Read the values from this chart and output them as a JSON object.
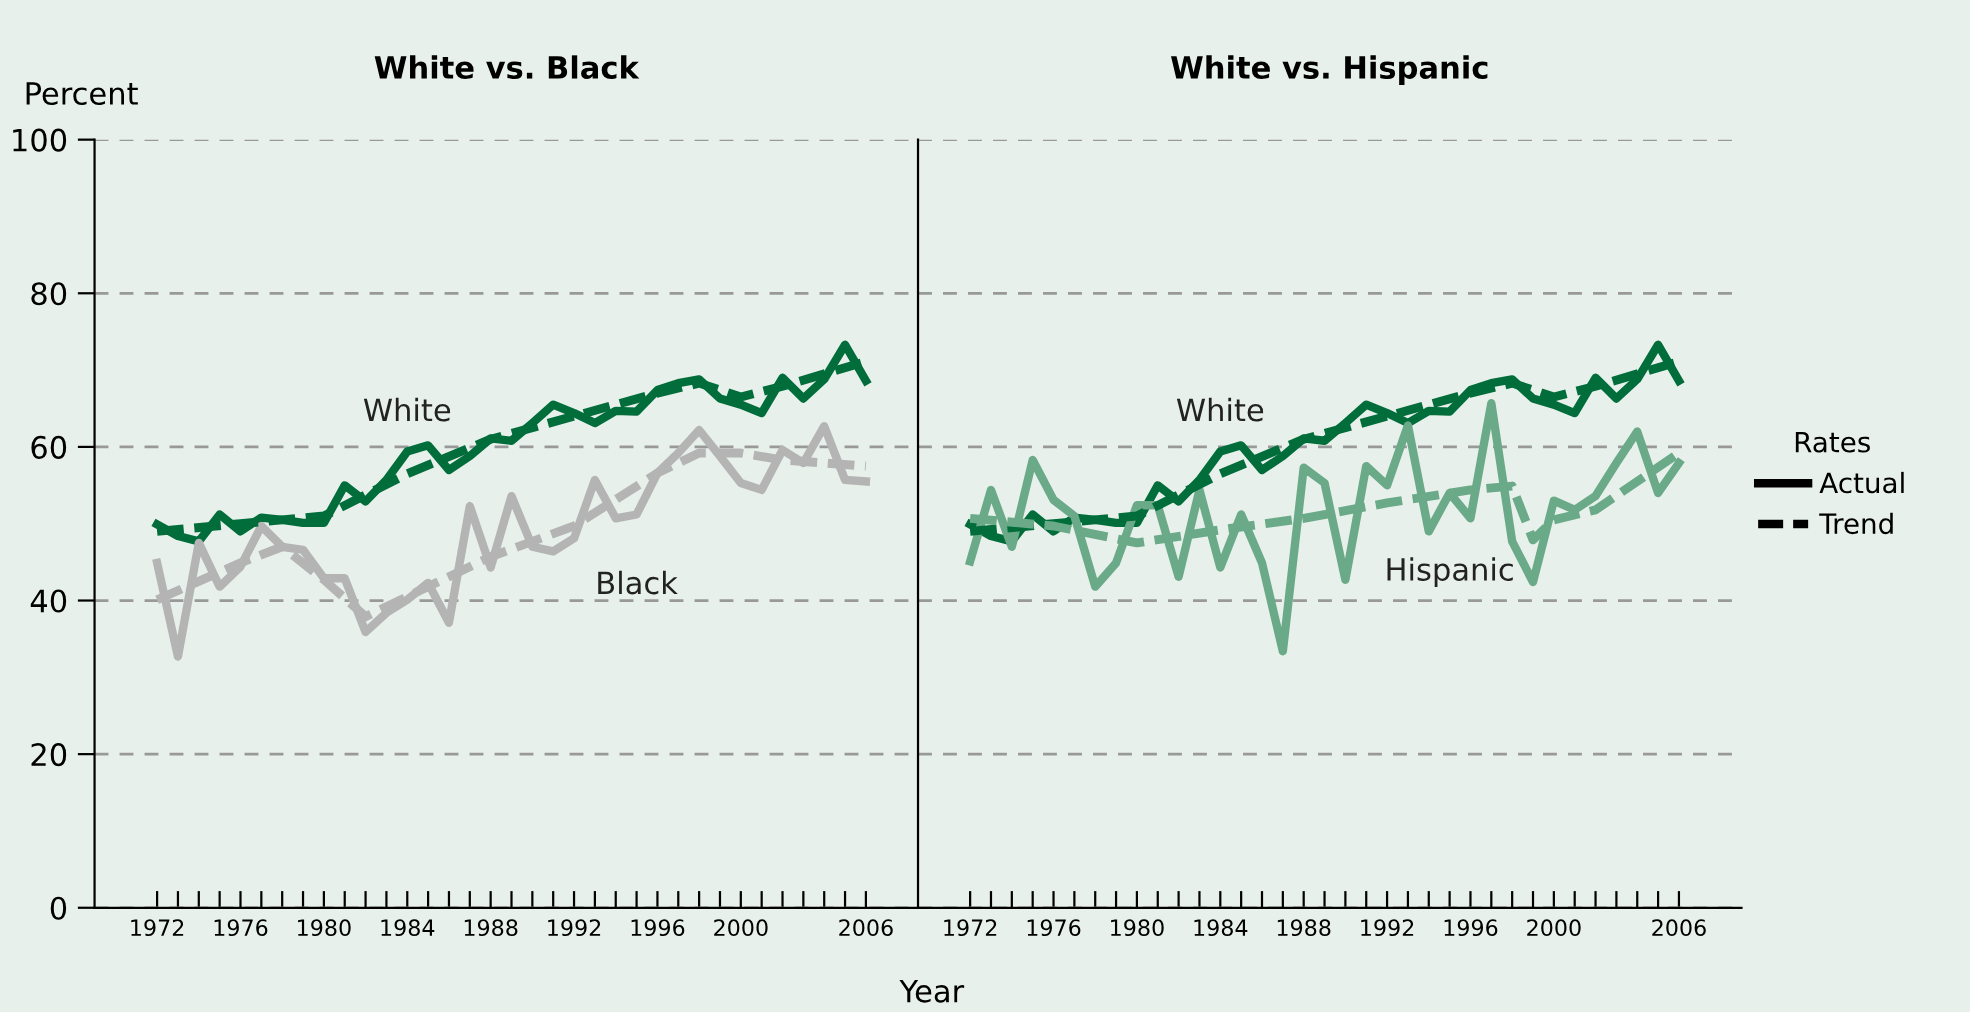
{
  "chart_data": [
    {
      "type": "line",
      "title": "White vs. Black",
      "ylabel": "Percent",
      "xlabel": "Year",
      "x": [
        1972,
        1973,
        1974,
        1975,
        1976,
        1977,
        1978,
        1979,
        1980,
        1981,
        1982,
        1983,
        1984,
        1985,
        1986,
        1987,
        1988,
        1989,
        1990,
        1991,
        1992,
        1993,
        1994,
        1995,
        1996,
        1997,
        1998,
        1999,
        2000,
        2001,
        2002,
        2003,
        2004,
        2005,
        2006
      ],
      "series": [
        {
          "name": "White",
          "color": "#006d3a",
          "line_style": "solid",
          "values": [
            49.9,
            48.4,
            47.7,
            51.2,
            49.0,
            50.8,
            50.5,
            50.1,
            50.1,
            55.0,
            52.9,
            55.7,
            59.4,
            60.2,
            57.0,
            58.8,
            61.1,
            60.8,
            63.1,
            65.5,
            64.4,
            63.1,
            64.7,
            64.6,
            67.4,
            68.3,
            68.8,
            66.3,
            65.5,
            64.4,
            69.0,
            66.3,
            68.8,
            73.3,
            68.6
          ]
        },
        {
          "name": "Black",
          "color": "#b4b4b4",
          "line_style": "solid",
          "values": [
            44.9,
            32.7,
            47.5,
            41.8,
            44.4,
            49.7,
            47.0,
            46.6,
            42.9,
            42.9,
            35.9,
            38.4,
            40.1,
            42.3,
            37.1,
            52.3,
            44.3,
            53.6,
            47.0,
            46.4,
            48.1,
            55.7,
            50.7,
            51.2,
            56.6,
            59.2,
            62.2,
            58.8,
            55.3,
            54.4,
            59.6,
            57.9,
            62.7,
            55.7,
            55.5
          ]
        },
        {
          "color": "#006d3a",
          "line_style": "dashed",
          "x": [
            1972,
            1976,
            1980,
            1984,
            1988,
            1992,
            1996,
            1998,
            2000,
            2002,
            2006
          ],
          "values": [
            49.0,
            50.0,
            51.0,
            56.5,
            61.0,
            64.0,
            67.0,
            68.3,
            66.5,
            67.9,
            71.1
          ]
        },
        {
          "color": "#b4b4b4",
          "line_style": "dashed",
          "x": [
            1972,
            1976,
            1978,
            1980,
            1982,
            1988,
            1992,
            1996,
            1998,
            2000,
            2002,
            2006
          ],
          "values": [
            40.1,
            44.9,
            47.0,
            42.7,
            37.9,
            45.7,
            49.7,
            56.6,
            59.2,
            59.2,
            58.3,
            57.5
          ]
        }
      ],
      "xlim": [
        1969,
        2008.5
      ],
      "ylim": [
        0,
        100
      ],
      "yticks": [
        0,
        20,
        40,
        60,
        80,
        100
      ],
      "xticks": [
        1972,
        {
          "value": 1973,
          "label": null
        },
        {
          "value": 1974,
          "label": null
        },
        {
          "value": 1975,
          "label": null
        },
        1976,
        {
          "value": 1977,
          "label": null
        },
        {
          "value": 1978,
          "label": null
        },
        {
          "value": 1979,
          "label": null
        },
        1980,
        {
          "value": 1981,
          "label": null
        },
        {
          "value": 1982,
          "label": null
        },
        {
          "value": 1983,
          "label": null
        },
        1984,
        {
          "value": 1985,
          "label": null
        },
        {
          "value": 1986,
          "label": null
        },
        {
          "value": 1987,
          "label": null
        },
        1988,
        {
          "value": 1989,
          "label": null
        },
        {
          "value": 1990,
          "label": null
        },
        {
          "value": 1991,
          "label": null
        },
        1992,
        {
          "value": 1993,
          "label": null
        },
        {
          "value": 1994,
          "label": null
        },
        {
          "value": 1995,
          "label": null
        },
        1996,
        {
          "value": 1997,
          "label": null
        },
        {
          "value": 1998,
          "label": null
        },
        {
          "value": 1999,
          "label": null
        },
        2000,
        {
          "value": 2001,
          "label": null
        },
        {
          "value": 2002,
          "label": null
        },
        {
          "value": 2003,
          "label": null
        },
        {
          "value": 2004,
          "label": null
        },
        {
          "value": 2005,
          "label": null
        },
        2006
      ],
      "grid": "y",
      "legend": false
    },
    {
      "type": "line",
      "title": "White vs. Hispanic",
      "legend_title": "Rates",
      "annotations": [
        "Actual",
        "Trend"
      ],
      "x": [
        1972,
        1973,
        1974,
        1975,
        1976,
        1977,
        1978,
        1979,
        1980,
        1981,
        1982,
        1983,
        1984,
        1985,
        1986,
        1987,
        1988,
        1989,
        1990,
        1991,
        1992,
        1993,
        1994,
        1995,
        1996,
        1997,
        1998,
        1999,
        2000,
        2001,
        2002,
        2003,
        2004,
        2005,
        2006
      ],
      "series": [
        {
          "name": "White",
          "color": "#006d3a",
          "line_style": "solid",
          "values": [
            49.9,
            48.4,
            47.7,
            51.2,
            49.0,
            50.8,
            50.5,
            50.1,
            50.1,
            55.0,
            52.9,
            55.7,
            59.4,
            60.2,
            57.0,
            58.8,
            61.1,
            60.8,
            63.1,
            65.5,
            64.4,
            63.1,
            64.7,
            64.6,
            67.4,
            68.3,
            68.8,
            66.3,
            65.5,
            64.4,
            69.0,
            66.3,
            68.8,
            73.3,
            68.6
          ]
        },
        {
          "name": "Hispanic",
          "color": "#6aaa88",
          "line_style": "solid",
          "values": [
            45.1,
            54.4,
            47.0,
            58.3,
            53.1,
            51.0,
            41.8,
            44.9,
            52.4,
            52.4,
            43.1,
            54.4,
            44.3,
            51.2,
            44.9,
            33.4,
            57.3,
            55.3,
            42.7,
            57.5,
            55.0,
            62.8,
            49.0,
            54.0,
            50.7,
            65.7,
            47.7,
            42.4,
            53.0,
            51.8,
            53.6,
            57.9,
            62.0,
            54.0,
            57.9
          ]
        },
        {
          "color": "#006d3a",
          "line_style": "dashed",
          "x": [
            1972,
            1976,
            1980,
            1984,
            1988,
            1992,
            1996,
            1998,
            2000,
            2002,
            2006
          ],
          "values": [
            49.0,
            50.0,
            51.0,
            56.5,
            61.0,
            64.0,
            67.0,
            68.3,
            66.5,
            67.9,
            71.1
          ]
        },
        {
          "color": "#6aaa88",
          "line_style": "dashed",
          "x": [
            1972,
            1976,
            1980,
            1984,
            1988,
            1992,
            1996,
            1998,
            1999,
            2000,
            2002,
            2006
          ],
          "values": [
            50.7,
            49.7,
            47.5,
            49.2,
            50.7,
            52.7,
            54.4,
            54.9,
            47.9,
            50.5,
            51.8,
            59.2
          ]
        }
      ],
      "xlim": [
        1969.5,
        2009
      ],
      "ylim": [
        0,
        100
      ],
      "yticks": [
        0,
        20,
        40,
        60,
        80,
        100
      ],
      "tick_labels": "x",
      "xticks": [
        1972,
        {
          "value": 1973,
          "label": null
        },
        {
          "value": 1974,
          "label": null
        },
        {
          "value": 1975,
          "label": null
        },
        1976,
        {
          "value": 1977,
          "label": null
        },
        {
          "value": 1978,
          "label": null
        },
        {
          "value": 1979,
          "label": null
        },
        1980,
        {
          "value": 1981,
          "label": null
        },
        {
          "value": 1982,
          "label": null
        },
        {
          "value": 1983,
          "label": null
        },
        1984,
        {
          "value": 1985,
          "label": null
        },
        {
          "value": 1986,
          "label": null
        },
        {
          "value": 1987,
          "label": null
        },
        1988,
        {
          "value": 1989,
          "label": null
        },
        {
          "value": 1990,
          "label": null
        },
        {
          "value": 1991,
          "label": null
        },
        1992,
        {
          "value": 1993,
          "label": null
        },
        {
          "value": 1994,
          "label": null
        },
        {
          "value": 1995,
          "label": null
        },
        1996,
        {
          "value": 1997,
          "label": null
        },
        {
          "value": 1998,
          "label": null
        },
        {
          "value": 1999,
          "label": null
        },
        2000,
        {
          "value": 2001,
          "label": null
        },
        {
          "value": 2002,
          "label": null
        },
        {
          "value": 2003,
          "label": null
        },
        {
          "value": 2004,
          "label": null
        },
        {
          "value": 2005,
          "label": null
        },
        2006
      ],
      "grid": "y",
      "legend": "right"
    }
  ]
}
